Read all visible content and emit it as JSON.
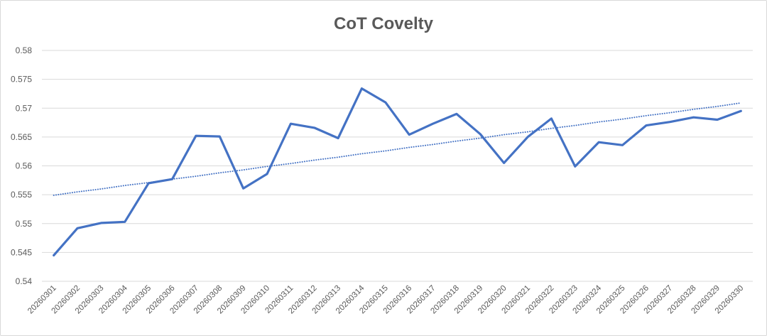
{
  "chart_data": {
    "type": "line",
    "title": "CoT Covelty",
    "xlabel": "",
    "ylabel": "",
    "ylim": [
      0.54,
      0.58
    ],
    "yticks": [
      "0.54",
      "0.545",
      "0.55",
      "0.555",
      "0.56",
      "0.565",
      "0.57",
      "0.575",
      "0.58"
    ],
    "grid": true,
    "legend": "none",
    "categories": [
      "20260301",
      "20260302",
      "20260303",
      "20260304",
      "20260305",
      "20260306",
      "20260307",
      "20260308",
      "20260309",
      "20260310",
      "20260311",
      "20260312",
      "20260313",
      "20260314",
      "20260315",
      "20260316",
      "20260317",
      "20260318",
      "20260319",
      "20260320",
      "20260321",
      "20260322",
      "20260323",
      "20260324",
      "20260325",
      "20260326",
      "20260327",
      "20260328",
      "20260329",
      "20260330"
    ],
    "series": [
      {
        "values": [
          0.5445,
          0.5492,
          0.5501,
          0.5503,
          0.557,
          0.5577,
          0.5652,
          0.5651,
          0.5561,
          0.5586,
          0.5673,
          0.5666,
          0.5648,
          0.5734,
          0.571,
          0.5654,
          0.5673,
          0.569,
          0.5655,
          0.5605,
          0.565,
          0.5682,
          0.5599,
          0.5641,
          0.5636,
          0.567,
          0.5676,
          0.5684,
          0.568,
          0.5695
        ],
        "color": "#4472c4",
        "style": "solid"
      },
      {
        "trendline": "linear",
        "values": [
          0.5549,
          0.5555,
          0.556,
          0.5566,
          0.5571,
          0.5577,
          0.5582,
          0.5588,
          0.5593,
          0.5599,
          0.5604,
          0.561,
          0.5615,
          0.5621,
          0.5626,
          0.5632,
          0.5637,
          0.5643,
          0.5648,
          0.5654,
          0.5659,
          0.5665,
          0.567,
          0.5676,
          0.5681,
          0.5687,
          0.5692,
          0.5698,
          0.5703,
          0.5709
        ],
        "color": "#4472c4",
        "style": "dotted"
      }
    ]
  }
}
